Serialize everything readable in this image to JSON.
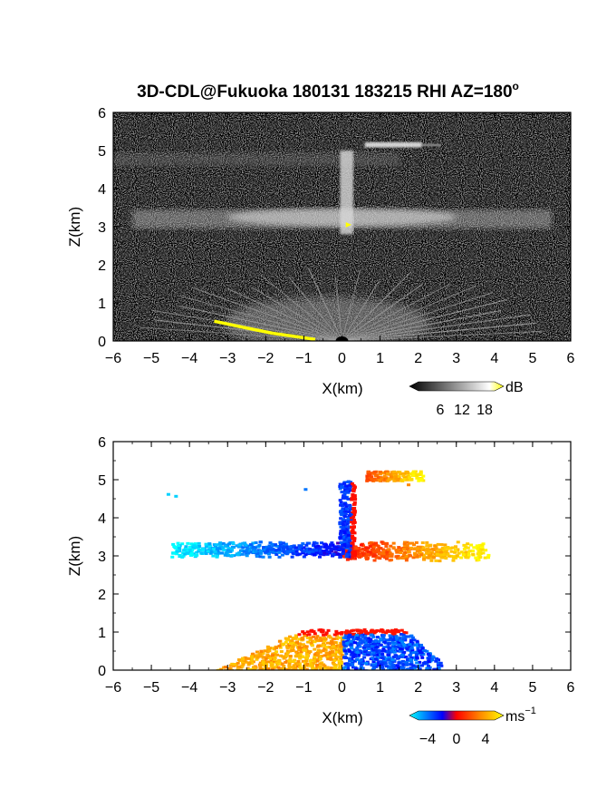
{
  "title_main": "3D-CDL@Fukuoka 180131 183215 RHI AZ=180",
  "title_degree": "o",
  "chart_data": [
    {
      "type": "heatmap",
      "title": "3D-CDL@Fukuoka 180131 183215 RHI AZ=180°",
      "quantity": "backscatter intensity",
      "xlabel": "X(km)",
      "ylabel": "Z(km)",
      "xlim": [
        -6,
        6
      ],
      "ylim": [
        0,
        6
      ],
      "x_ticks": [
        -6,
        -5,
        -4,
        -3,
        -2,
        -1,
        0,
        1,
        2,
        3,
        4,
        5,
        6
      ],
      "y_ticks": [
        0,
        1,
        2,
        3,
        4,
        5,
        6
      ],
      "background": "grey noise",
      "colorbar": {
        "unit": "dB",
        "ticks": [
          6,
          12,
          18
        ],
        "colors": [
          "#000000",
          "#ffffff",
          "#ffff00"
        ]
      },
      "features": [
        {
          "label": "lower layer",
          "z_range": [
            0,
            1.1
          ],
          "x_range": [
            -3.5,
            2.5
          ],
          "value_db": 14
        },
        {
          "label": "mid layer",
          "z_center": 3.2,
          "x_range": [
            -5.5,
            5.5
          ],
          "value_db": 12
        },
        {
          "label": "upper layer",
          "z_center": 4.8,
          "x_range": [
            -6,
            1.5
          ],
          "value_db": 9
        },
        {
          "label": "vertical column",
          "x_center": 0.1,
          "z_range": [
            2.8,
            5.0
          ],
          "value_db": 16
        },
        {
          "label": "top patch",
          "z_center": 5.15,
          "x_range": [
            0.6,
            2.6
          ],
          "value_db": 14
        }
      ]
    },
    {
      "type": "heatmap",
      "quantity": "Doppler velocity",
      "xlabel": "X(km)",
      "ylabel": "Z(km)",
      "xlim": [
        -6,
        6
      ],
      "ylim": [
        0,
        6
      ],
      "x_ticks": [
        -6,
        -5,
        -4,
        -3,
        -2,
        -1,
        0,
        1,
        2,
        3,
        4,
        5,
        6
      ],
      "y_ticks": [
        0,
        1,
        2,
        3,
        4,
        5,
        6
      ],
      "background": "white",
      "colorbar": {
        "unit": "ms",
        "unit_exponent": "−1",
        "ticks": [
          "−4",
          "0",
          "4"
        ],
        "colors": [
          "#00ffff",
          "#0000ff",
          "#ff0000",
          "#ffff00"
        ]
      },
      "regions": [
        {
          "label": "mid layer west",
          "x_range": [
            -4.5,
            0
          ],
          "z_range": [
            3.0,
            3.4
          ],
          "velocity": -3
        },
        {
          "label": "mid layer east",
          "x_range": [
            0,
            3.8
          ],
          "z_range": [
            2.9,
            3.4
          ],
          "velocity": 3
        },
        {
          "label": "column",
          "x_range": [
            -0.1,
            0.3
          ],
          "z_range": [
            3.0,
            5.0
          ],
          "velocity": -1
        },
        {
          "label": "top patch",
          "x_range": [
            0.6,
            2.1
          ],
          "z_range": [
            5.0,
            5.25
          ],
          "velocity": 3
        },
        {
          "label": "lower west",
          "x_range": [
            -3.4,
            0
          ],
          "z_range": [
            0,
            1.1
          ],
          "velocity": 2
        },
        {
          "label": "lower east",
          "x_range": [
            0,
            2.6
          ],
          "z_range": [
            0,
            1.1
          ],
          "velocity": -2
        }
      ]
    }
  ]
}
